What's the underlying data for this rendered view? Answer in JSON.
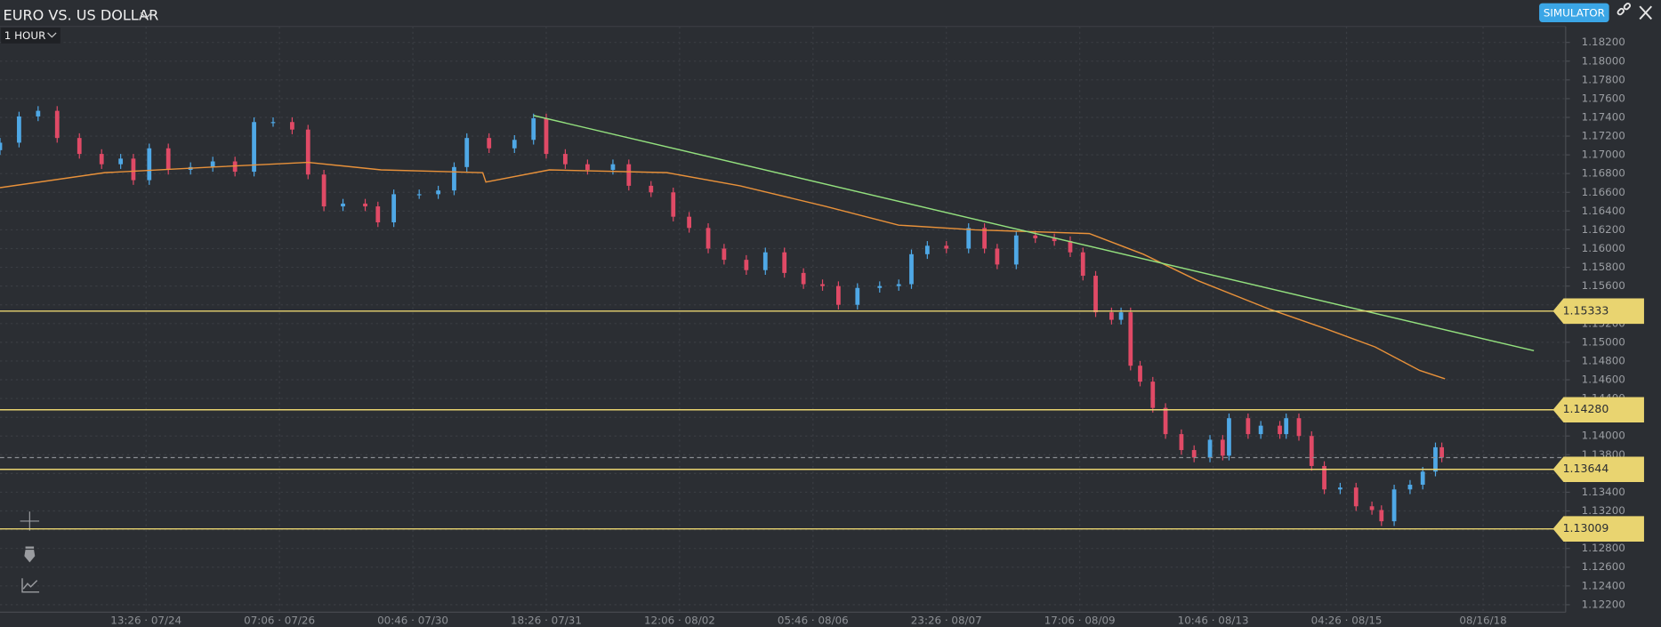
{
  "header": {
    "title": "EURO VS. US DOLLAR",
    "timeframe": "1 HOUR",
    "mode": "SIMULATOR"
  },
  "chart_data": {
    "type": "candlestick",
    "x": [
      0,
      6,
      12,
      18,
      25,
      32,
      38,
      42,
      47,
      53,
      60,
      67,
      74,
      80,
      86,
      92,
      97,
      102,
      108,
      115,
      119,
      124,
      132,
      138,
      143,
      147,
      154,
      162,
      168,
      172,
      178,
      185,
      193,
      198,
      205,
      212,
      217,
      223,
      228,
      235,
      241,
      247,
      253,
      259,
      264,
      270,
      277,
      283,
      287,
      292,
      298,
      305,
      310,
      314,
      320,
      326,
      332,
      337,
      341,
      345,
      350,
      353,
      356,
      359,
      363,
      367,
      372,
      376,
      381,
      385,
      387,
      393,
      397,
      403,
      405,
      409,
      413,
      417,
      422,
      427,
      432,
      435,
      439,
      444,
      448,
      452,
      454
    ],
    "open": [
      1.1705,
      1.1713,
      1.1741,
      1.1747,
      1.1718,
      1.1701,
      1.169,
      1.1696,
      1.1673,
      1.1707,
      1.1684,
      1.1687,
      1.1693,
      1.1682,
      1.1735,
      1.1735,
      1.1727,
      1.1679,
      1.1645,
      1.1648,
      1.1645,
      1.1628,
      1.1658,
      1.1658,
      1.1662,
      1.1687,
      1.1718,
      1.1707,
      1.1716,
      1.1739,
      1.1701,
      1.169,
      1.1684,
      1.169,
      1.1667,
      1.166,
      1.1634,
      1.1622,
      1.16,
      1.1588,
      1.1577,
      1.1596,
      1.1574,
      1.1562,
      1.156,
      1.154,
      1.1558,
      1.156,
      1.1562,
      1.1594,
      1.1603,
      1.16,
      1.1622,
      1.16,
      1.1583,
      1.1614,
      1.1611,
      1.1608,
      1.1596,
      1.1571,
      1.1532,
      1.1524,
      1.1532,
      1.1475,
      1.1458,
      1.143,
      1.1402,
      1.1385,
      1.1377,
      1.1396,
      1.1379,
      1.1419,
      1.1402,
      1.1411,
      1.1402,
      1.1419,
      1.14,
      1.1368,
      1.1343,
      1.1345,
      1.1325,
      1.1321,
      1.1309,
      1.1343,
      1.1348,
      1.1362,
      1.1388
    ],
    "high": [
      1.1718,
      1.1746,
      1.1752,
      1.1752,
      1.1723,
      1.1706,
      1.1701,
      1.1701,
      1.1712,
      1.1712,
      1.1692,
      1.1698,
      1.1698,
      1.174,
      1.174,
      1.174,
      1.1732,
      1.1684,
      1.1653,
      1.1653,
      1.165,
      1.1663,
      1.1663,
      1.1667,
      1.1692,
      1.1723,
      1.1723,
      1.1721,
      1.1744,
      1.1744,
      1.1706,
      1.1695,
      1.1695,
      1.1695,
      1.1672,
      1.1665,
      1.1639,
      1.1627,
      1.1605,
      1.1593,
      1.1601,
      1.1601,
      1.1579,
      1.1567,
      1.1565,
      1.1563,
      1.1565,
      1.1567,
      1.1599,
      1.1608,
      1.1608,
      1.1627,
      1.1627,
      1.1605,
      1.1619,
      1.1619,
      1.1616,
      1.1613,
      1.1601,
      1.1576,
      1.1537,
      1.1537,
      1.1537,
      1.148,
      1.1463,
      1.1435,
      1.1407,
      1.139,
      1.1401,
      1.1401,
      1.1424,
      1.1424,
      1.1416,
      1.1416,
      1.1424,
      1.1424,
      1.1405,
      1.1373,
      1.135,
      1.135,
      1.133,
      1.1326,
      1.1348,
      1.1353,
      1.1367,
      1.1393,
      1.1393
    ],
    "low": [
      1.17,
      1.1708,
      1.1736,
      1.1713,
      1.1696,
      1.1685,
      1.1685,
      1.1668,
      1.1668,
      1.1679,
      1.1679,
      1.1682,
      1.1677,
      1.1677,
      1.173,
      1.1722,
      1.1674,
      1.164,
      1.164,
      1.164,
      1.1623,
      1.1623,
      1.1653,
      1.1653,
      1.1657,
      1.1682,
      1.1702,
      1.1702,
      1.1711,
      1.1696,
      1.1685,
      1.1679,
      1.1679,
      1.1662,
      1.1655,
      1.1629,
      1.1617,
      1.1595,
      1.1583,
      1.1572,
      1.1572,
      1.1569,
      1.1557,
      1.1555,
      1.1535,
      1.1535,
      1.1553,
      1.1555,
      1.1557,
      1.1589,
      1.1595,
      1.1595,
      1.1595,
      1.1578,
      1.1578,
      1.1606,
      1.1603,
      1.1591,
      1.1566,
      1.1527,
      1.1519,
      1.1519,
      1.147,
      1.1453,
      1.1425,
      1.1397,
      1.138,
      1.1372,
      1.1372,
      1.1374,
      1.1374,
      1.1397,
      1.1397,
      1.1397,
      1.1397,
      1.1395,
      1.1363,
      1.1338,
      1.1338,
      1.132,
      1.1316,
      1.1304,
      1.1304,
      1.1338,
      1.1343,
      1.1357,
      1.1372
    ],
    "close": [
      1.1713,
      1.1741,
      1.1747,
      1.1718,
      1.1701,
      1.169,
      1.1696,
      1.1673,
      1.1707,
      1.1684,
      1.1687,
      1.1693,
      1.1682,
      1.1735,
      1.1735,
      1.1727,
      1.1679,
      1.1645,
      1.1648,
      1.1645,
      1.1628,
      1.1658,
      1.1658,
      1.1662,
      1.1687,
      1.1718,
      1.1707,
      1.1716,
      1.1739,
      1.1701,
      1.169,
      1.1684,
      1.169,
      1.1667,
      1.166,
      1.1634,
      1.1622,
      1.16,
      1.1588,
      1.1577,
      1.1596,
      1.1574,
      1.1562,
      1.156,
      1.154,
      1.1558,
      1.156,
      1.1562,
      1.1594,
      1.1603,
      1.16,
      1.1622,
      1.16,
      1.1583,
      1.1614,
      1.1611,
      1.1608,
      1.1596,
      1.1571,
      1.1532,
      1.1524,
      1.1532,
      1.1475,
      1.1458,
      1.143,
      1.1402,
      1.1385,
      1.1377,
      1.1396,
      1.1379,
      1.1419,
      1.1402,
      1.1411,
      1.1402,
      1.1419,
      1.14,
      1.1368,
      1.1343,
      1.1345,
      1.1325,
      1.1321,
      1.1309,
      1.1343,
      1.1348,
      1.1362,
      1.1388,
      1.1377
    ],
    "up_color": "#4fa8e6",
    "down_color": "#e04a66",
    "xlim": [
      0,
      493
    ],
    "ylim": [
      1.1212,
      1.1837
    ],
    "xticks": [
      {
        "value": 46,
        "label": "13:26 · 07/24"
      },
      {
        "value": 88,
        "label": "07:06 · 07/26"
      },
      {
        "value": 130,
        "label": "00:46 · 07/30"
      },
      {
        "value": 172,
        "label": "18:26 · 07/31"
      },
      {
        "value": 214,
        "label": "12:06 · 08/02"
      },
      {
        "value": 256,
        "label": "05:46 · 08/06"
      },
      {
        "value": 298,
        "label": "23:26 · 08/07"
      },
      {
        "value": 340,
        "label": "17:06 · 08/09"
      },
      {
        "value": 382,
        "label": "10:46 · 08/13"
      },
      {
        "value": 424,
        "label": "04:26 · 08/15"
      },
      {
        "value": 467,
        "label": "08/16/18"
      }
    ],
    "yticks": [
      {
        "value": 1.182,
        "label": "1.18200"
      },
      {
        "value": 1.18,
        "label": "1.18000"
      },
      {
        "value": 1.178,
        "label": "1.17800"
      },
      {
        "value": 1.176,
        "label": "1.17600"
      },
      {
        "value": 1.174,
        "label": "1.17400"
      },
      {
        "value": 1.172,
        "label": "1.17200"
      },
      {
        "value": 1.17,
        "label": "1.17000"
      },
      {
        "value": 1.168,
        "label": "1.16800"
      },
      {
        "value": 1.166,
        "label": "1.16600"
      },
      {
        "value": 1.164,
        "label": "1.16400"
      },
      {
        "value": 1.162,
        "label": "1.16200"
      },
      {
        "value": 1.16,
        "label": "1.16000"
      },
      {
        "value": 1.158,
        "label": "1.15800"
      },
      {
        "value": 1.156,
        "label": "1.15600"
      },
      {
        "value": 1.154,
        "label": "1.15400"
      },
      {
        "value": 1.152,
        "label": "1.15200"
      },
      {
        "value": 1.15,
        "label": "1.15000"
      },
      {
        "value": 1.148,
        "label": "1.14800"
      },
      {
        "value": 1.146,
        "label": "1.14600"
      },
      {
        "value": 1.144,
        "label": "1.14400"
      },
      {
        "value": 1.142,
        "label": "1.14200"
      },
      {
        "value": 1.14,
        "label": "1.14000"
      },
      {
        "value": 1.138,
        "label": "1.13800"
      },
      {
        "value": 1.136,
        "label": "1.13600"
      },
      {
        "value": 1.134,
        "label": "1.13400"
      },
      {
        "value": 1.132,
        "label": "1.13200"
      },
      {
        "value": 1.13,
        "label": "1.13000"
      },
      {
        "value": 1.128,
        "label": "1.12800"
      },
      {
        "value": 1.126,
        "label": "1.12600"
      },
      {
        "value": 1.124,
        "label": "1.12400"
      },
      {
        "value": 1.122,
        "label": "1.12200"
      }
    ],
    "grid": true,
    "moving_average": {
      "color": "#e8913a",
      "x": [
        0,
        33,
        67,
        97,
        120,
        152,
        153,
        173,
        210,
        233,
        260,
        283,
        307,
        343,
        360,
        377,
        400,
        417,
        433,
        447,
        455
      ],
      "values": [
        1.1665,
        1.1681,
        1.1687,
        1.1692,
        1.1684,
        1.1681,
        1.1671,
        1.1684,
        1.1681,
        1.1667,
        1.1645,
        1.1625,
        1.162,
        1.1616,
        1.1594,
        1.1566,
        1.1535,
        1.1515,
        1.1495,
        1.147,
        1.1461
      ]
    },
    "trendline": {
      "color": "#93e07e",
      "x": [
        168,
        483
      ],
      "values": [
        1.1742,
        1.1491
      ]
    },
    "levels": {
      "color": "#e9d470",
      "values": [
        1.15333,
        1.1428,
        1.13644,
        1.13009
      ],
      "value_labels": [
        "1.15333",
        "1.14280",
        "1.13644",
        "1.13009"
      ]
    }
  }
}
